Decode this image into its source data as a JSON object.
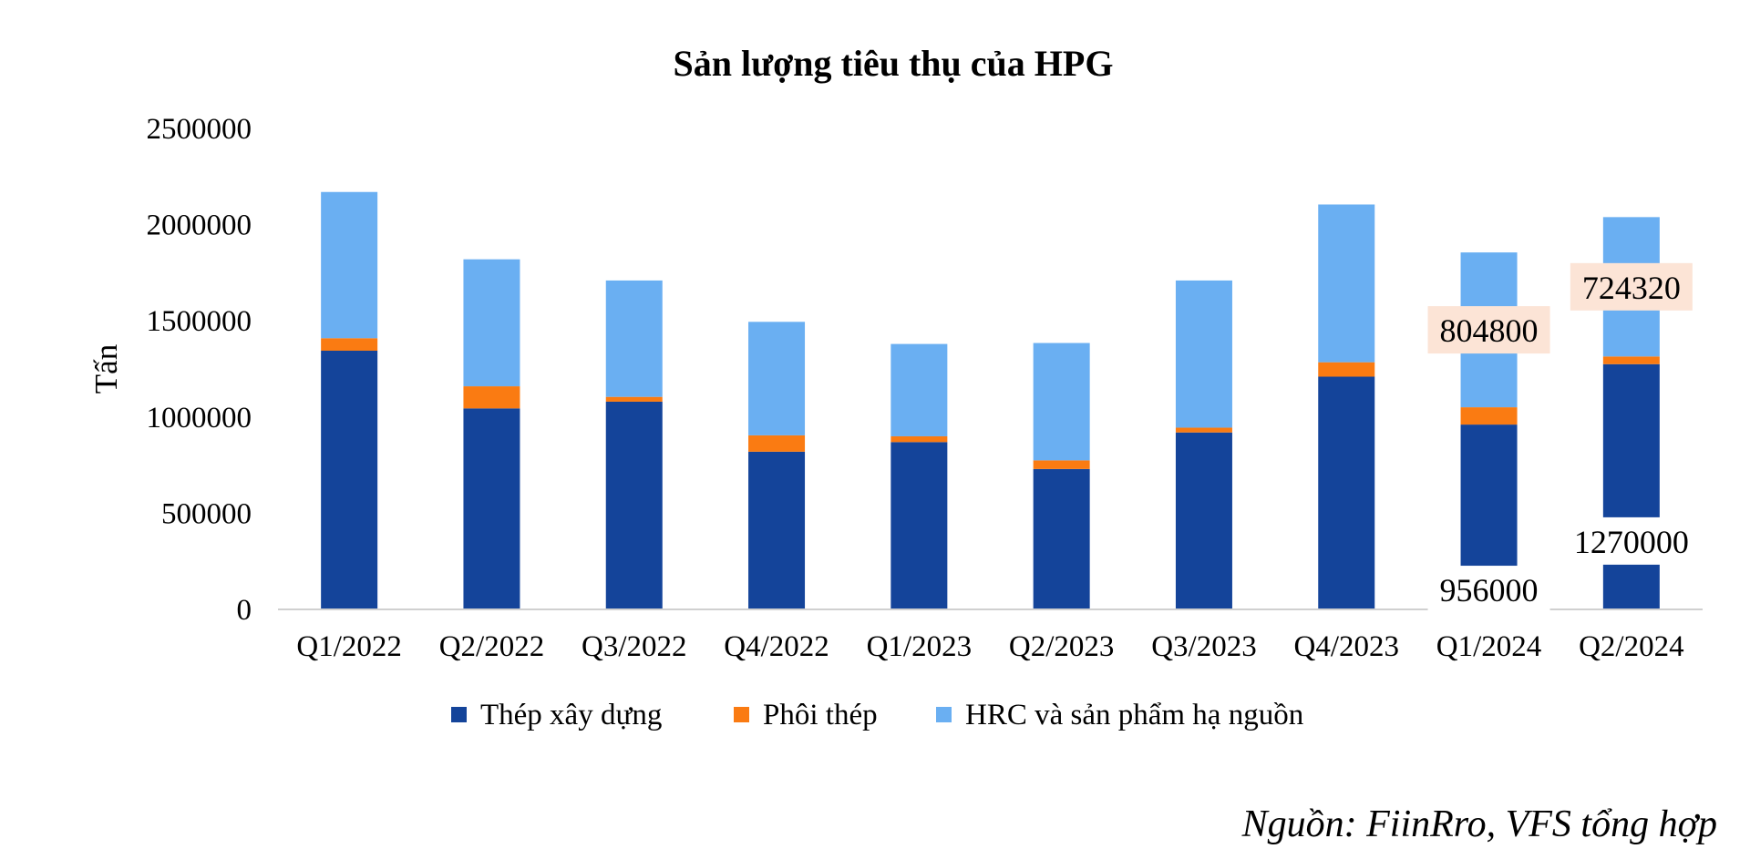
{
  "chart_data": {
    "type": "bar",
    "stacked": true,
    "title": "Sản lượng tiêu thụ của HPG",
    "ylabel": "Tấn",
    "xlabel": "",
    "ylim": [
      0,
      2500000
    ],
    "yticks": [
      "0",
      "500000",
      "1000000",
      "1500000",
      "2000000",
      "2500000"
    ],
    "categories": [
      "Q1/2022",
      "Q2/2022",
      "Q3/2022",
      "Q4/2022",
      "Q1/2023",
      "Q2/2023",
      "Q3/2023",
      "Q4/2023",
      "Q1/2024",
      "Q2/2024"
    ],
    "series": [
      {
        "name": "Thép xây dựng",
        "color": "#14449a",
        "values": [
          1340000,
          1040000,
          1075000,
          815000,
          865000,
          725000,
          915000,
          1205000,
          956000,
          1270000
        ]
      },
      {
        "name": "Phôi thép",
        "color": "#fa7b12",
        "values": [
          65000,
          115000,
          25000,
          85000,
          30000,
          45000,
          25000,
          75000,
          90000,
          40000
        ]
      },
      {
        "name": "HRC và sản phẩm hạ nguồn",
        "color": "#6aaff2",
        "values": [
          760000,
          660000,
          605000,
          590000,
          480000,
          610000,
          765000,
          820000,
          804800,
          724320
        ]
      }
    ],
    "data_labels": [
      {
        "category": "Q1/2024",
        "series": "Thép xây dựng",
        "text": "956000"
      },
      {
        "category": "Q2/2024",
        "series": "Thép xây dựng",
        "text": "1270000"
      },
      {
        "category": "Q1/2024",
        "series": "HRC và sản phẩm hạ nguồn",
        "text": "804800"
      },
      {
        "category": "Q2/2024",
        "series": "HRC và sản phẩm hạ nguồn",
        "text": "724320"
      }
    ],
    "legend_position": "bottom",
    "grid": false
  },
  "source": "Nguồn: FiinRro, VFS tổng hợp"
}
